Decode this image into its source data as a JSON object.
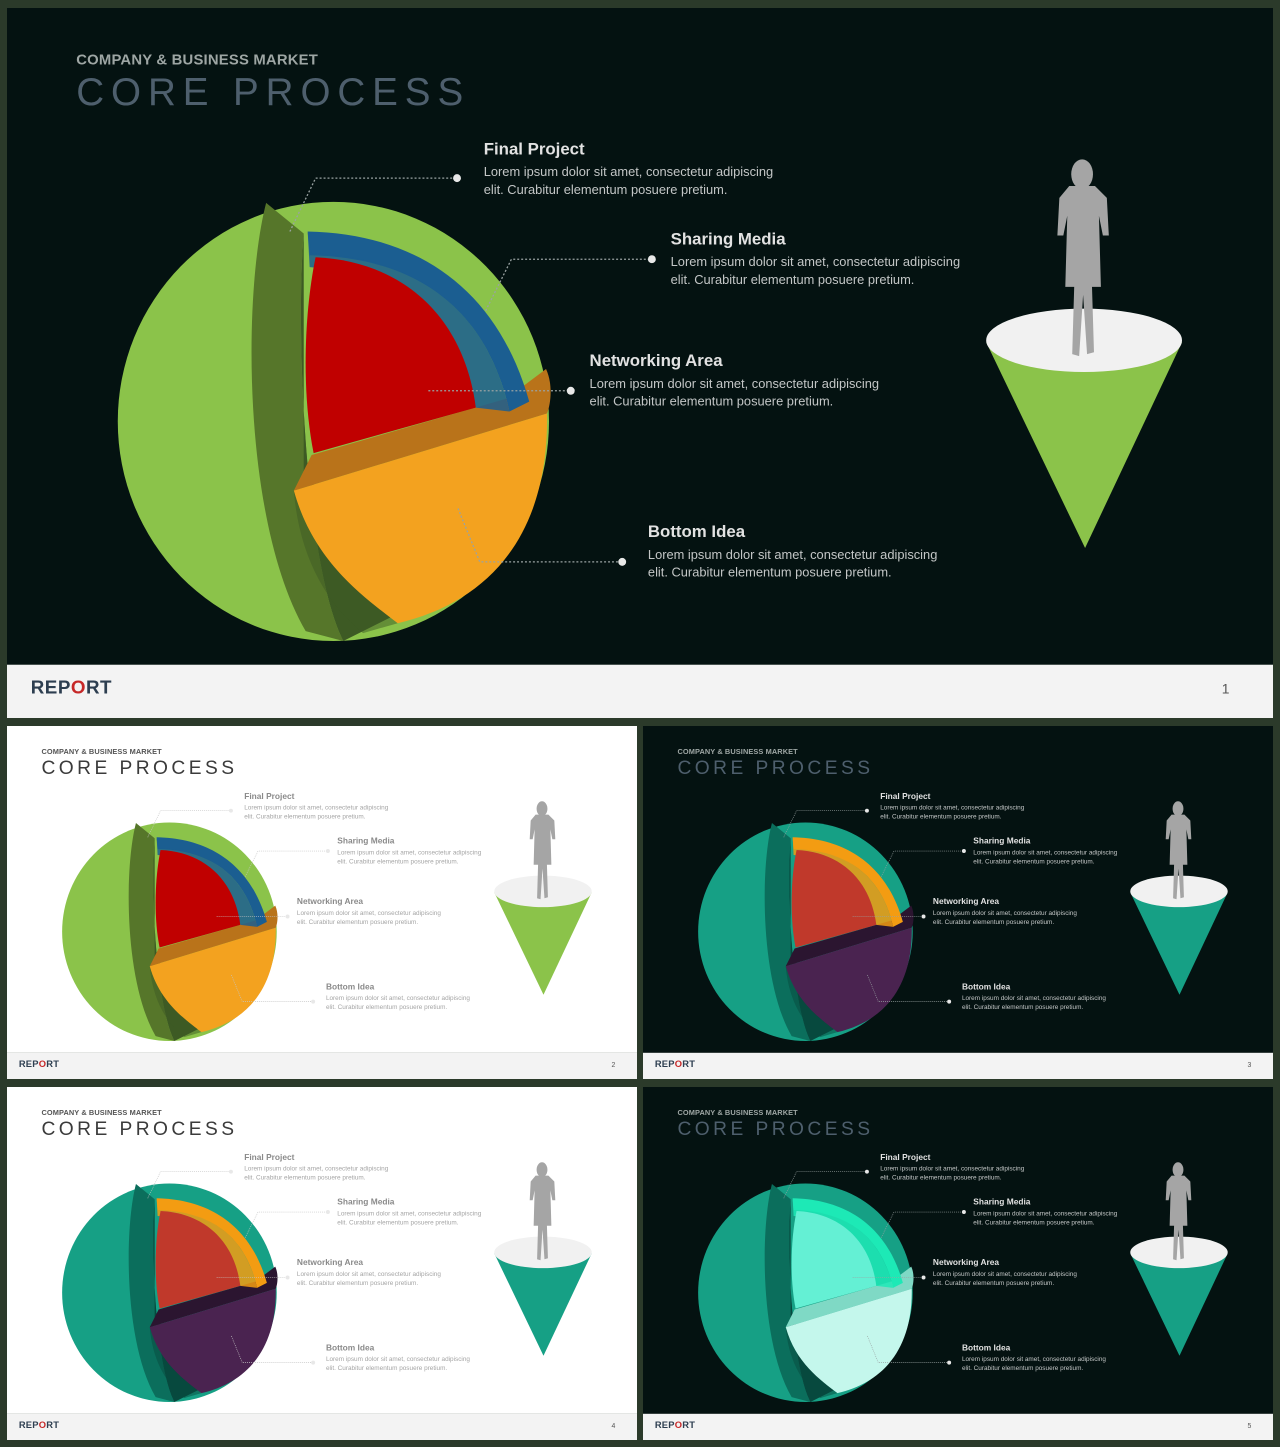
{
  "subtitle": "COMPANY & BUSINESS MARKET",
  "title": "CORE PROCESS",
  "brand": {
    "prefix": "REP",
    "highlight": "O",
    "suffix": "RT"
  },
  "labels": [
    {
      "heading": "Final Project",
      "body": "Lorem ipsum dolor sit amet, consectetur adipiscing elit. Curabitur elementum posuere pretium."
    },
    {
      "heading": "Sharing Media",
      "body": "Lorem ipsum dolor sit amet, consectetur adipiscing elit. Curabitur elementum posuere pretium."
    },
    {
      "heading": "Networking Area",
      "body": "Lorem ipsum dolor sit amet, consectetur adipiscing elit. Curabitur elementum posuere pretium."
    },
    {
      "heading": "Bottom Idea",
      "body": "Lorem ipsum dolor sit amet, consectetur adipiscing elit. Curabitur elementum posuere pretium."
    }
  ],
  "slides": [
    {
      "page": "1",
      "theme": "dark",
      "colors": {
        "shell": "#8bc34a",
        "shell_edge": "#56762a",
        "shell_inner": "#3d5a24",
        "top": "#1b5e91",
        "core": "#c00000",
        "lower": "#f3a21f",
        "lower_edge": "#b9731a",
        "cone": "#8bc34a"
      }
    },
    {
      "page": "2",
      "theme": "light",
      "colors": {
        "shell": "#8bc34a",
        "shell_edge": "#56762a",
        "shell_inner": "#3d5a24",
        "top": "#1b5e91",
        "core": "#c00000",
        "lower": "#f3a21f",
        "lower_edge": "#b9731a",
        "cone": "#8bc34a"
      }
    },
    {
      "page": "3",
      "theme": "dark",
      "colors": {
        "shell": "#16a085",
        "shell_edge": "#0b6e5c",
        "shell_inner": "#07493e",
        "top": "#f39c12",
        "core": "#c0392b",
        "lower": "#4a2350",
        "lower_edge": "#2b1530",
        "cone": "#16a085"
      }
    },
    {
      "page": "4",
      "theme": "light",
      "colors": {
        "shell": "#16a085",
        "shell_edge": "#0b6e5c",
        "shell_inner": "#07493e",
        "top": "#f39c12",
        "core": "#c0392b",
        "lower": "#4a2350",
        "lower_edge": "#2b1530",
        "cone": "#16a085"
      }
    },
    {
      "page": "5",
      "theme": "dark",
      "colors": {
        "shell": "#16a085",
        "shell_edge": "#0b6e5c",
        "shell_inner": "#07493e",
        "top": "#1de9b6",
        "core": "#64f0d4",
        "lower": "#c4f7ec",
        "lower_edge": "#7fd9c5",
        "cone": "#16a085"
      }
    }
  ]
}
